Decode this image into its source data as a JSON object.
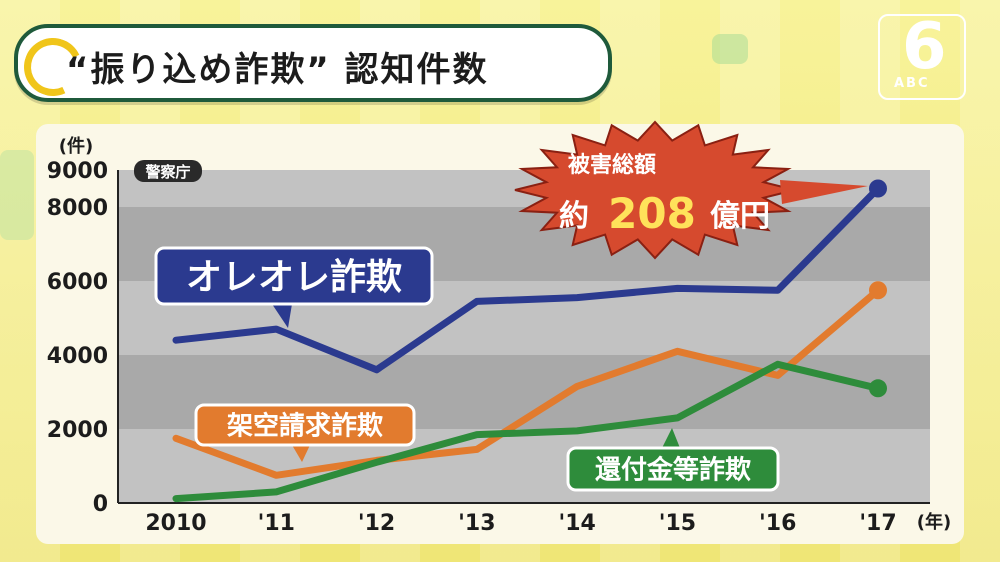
{
  "header": {
    "title": "“振り込め詐欺” 認知件数",
    "channel_logo_number": "6",
    "channel_logo_text": "ABC"
  },
  "chart_data": {
    "type": "line",
    "source_label": "警察庁",
    "y_unit_label": "(件)",
    "x_unit_label": "(年)",
    "categories": [
      "2010",
      "'11",
      "'12",
      "'13",
      "'14",
      "'15",
      "'16",
      "'17"
    ],
    "y_ticks": [
      "0",
      "2000",
      "4000",
      "6000",
      "8000",
      "9000"
    ],
    "ylim": [
      0,
      9000
    ],
    "grid": true,
    "series": [
      {
        "name": "オレオレ詐欺",
        "color": "#2b3a8f",
        "values": [
          4400,
          4700,
          3600,
          5450,
          5550,
          5800,
          5750,
          8500
        ]
      },
      {
        "name": "架空請求詐欺",
        "color": "#e27b2e",
        "values": [
          1750,
          750,
          1150,
          1450,
          3150,
          4100,
          3450,
          5750
        ]
      },
      {
        "name": "還付金等詐欺",
        "color": "#2e8c3b",
        "values": [
          120,
          300,
          1100,
          1850,
          1950,
          2300,
          3750,
          3100
        ]
      }
    ],
    "annotation": {
      "line1": "被害総額",
      "prefix": "約",
      "amount": "208",
      "suffix": "億円"
    }
  }
}
